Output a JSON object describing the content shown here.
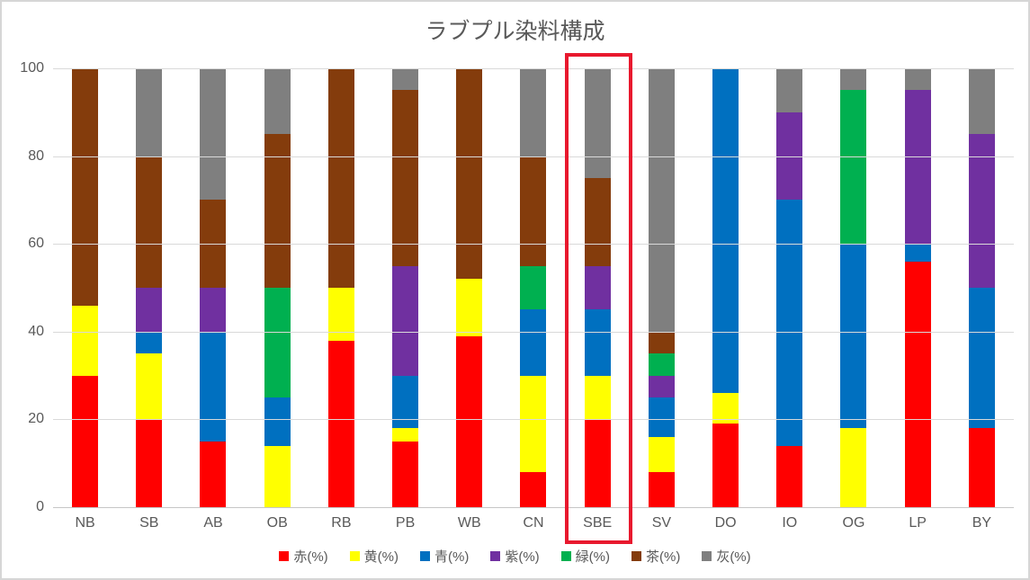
{
  "title": "ラブプル染料構成",
  "colors": {
    "red": "#FF0000",
    "yellow": "#FFFF00",
    "blue": "#0070C0",
    "purple": "#7030A0",
    "green": "#00B050",
    "brown": "#843C0C",
    "gray": "#7F7F7F",
    "highlight_border": "#E8192E",
    "axis_text": "#595959",
    "gridline": "#D9D9D9"
  },
  "chart_data": {
    "type": "bar",
    "stacked": true,
    "title": "ラブプル染料構成",
    "categories": [
      "NB",
      "SB",
      "AB",
      "OB",
      "RB",
      "PB",
      "WB",
      "CN",
      "SBE",
      "SV",
      "DO",
      "IO",
      "OG",
      "LP",
      "BY"
    ],
    "series": [
      {
        "name": "赤(%)",
        "color_key": "red",
        "values": [
          30,
          20,
          15,
          0,
          38,
          15,
          39,
          8,
          20,
          8,
          19,
          14,
          0,
          56,
          18
        ]
      },
      {
        "name": "黄(%)",
        "color_key": "yellow",
        "values": [
          16,
          15,
          0,
          14,
          12,
          3,
          13,
          22,
          10,
          8,
          7,
          0,
          18,
          0,
          0
        ]
      },
      {
        "name": "青(%)",
        "color_key": "blue",
        "values": [
          0,
          5,
          25,
          11,
          0,
          12,
          0,
          15,
          15,
          9,
          74,
          56,
          42,
          4,
          32
        ]
      },
      {
        "name": "紫(%)",
        "color_key": "purple",
        "values": [
          0,
          10,
          10,
          0,
          0,
          25,
          0,
          0,
          10,
          5,
          0,
          20,
          0,
          35,
          35
        ]
      },
      {
        "name": "緑(%)",
        "color_key": "green",
        "values": [
          0,
          0,
          0,
          25,
          0,
          0,
          0,
          10,
          0,
          5,
          0,
          0,
          35,
          0,
          0
        ]
      },
      {
        "name": "茶(%)",
        "color_key": "brown",
        "values": [
          54,
          30,
          20,
          35,
          50,
          40,
          48,
          25,
          20,
          5,
          0,
          0,
          0,
          0,
          0
        ]
      },
      {
        "name": "灰(%)",
        "color_key": "gray",
        "values": [
          0,
          20,
          30,
          15,
          0,
          5,
          0,
          20,
          25,
          60,
          0,
          10,
          5,
          5,
          15
        ]
      }
    ],
    "y_ticks": [
      0,
      20,
      40,
      60,
      80,
      100
    ],
    "ylim": [
      0,
      100
    ],
    "grid": true,
    "legend_position": "bottom",
    "highlighted_category": "SBE"
  }
}
